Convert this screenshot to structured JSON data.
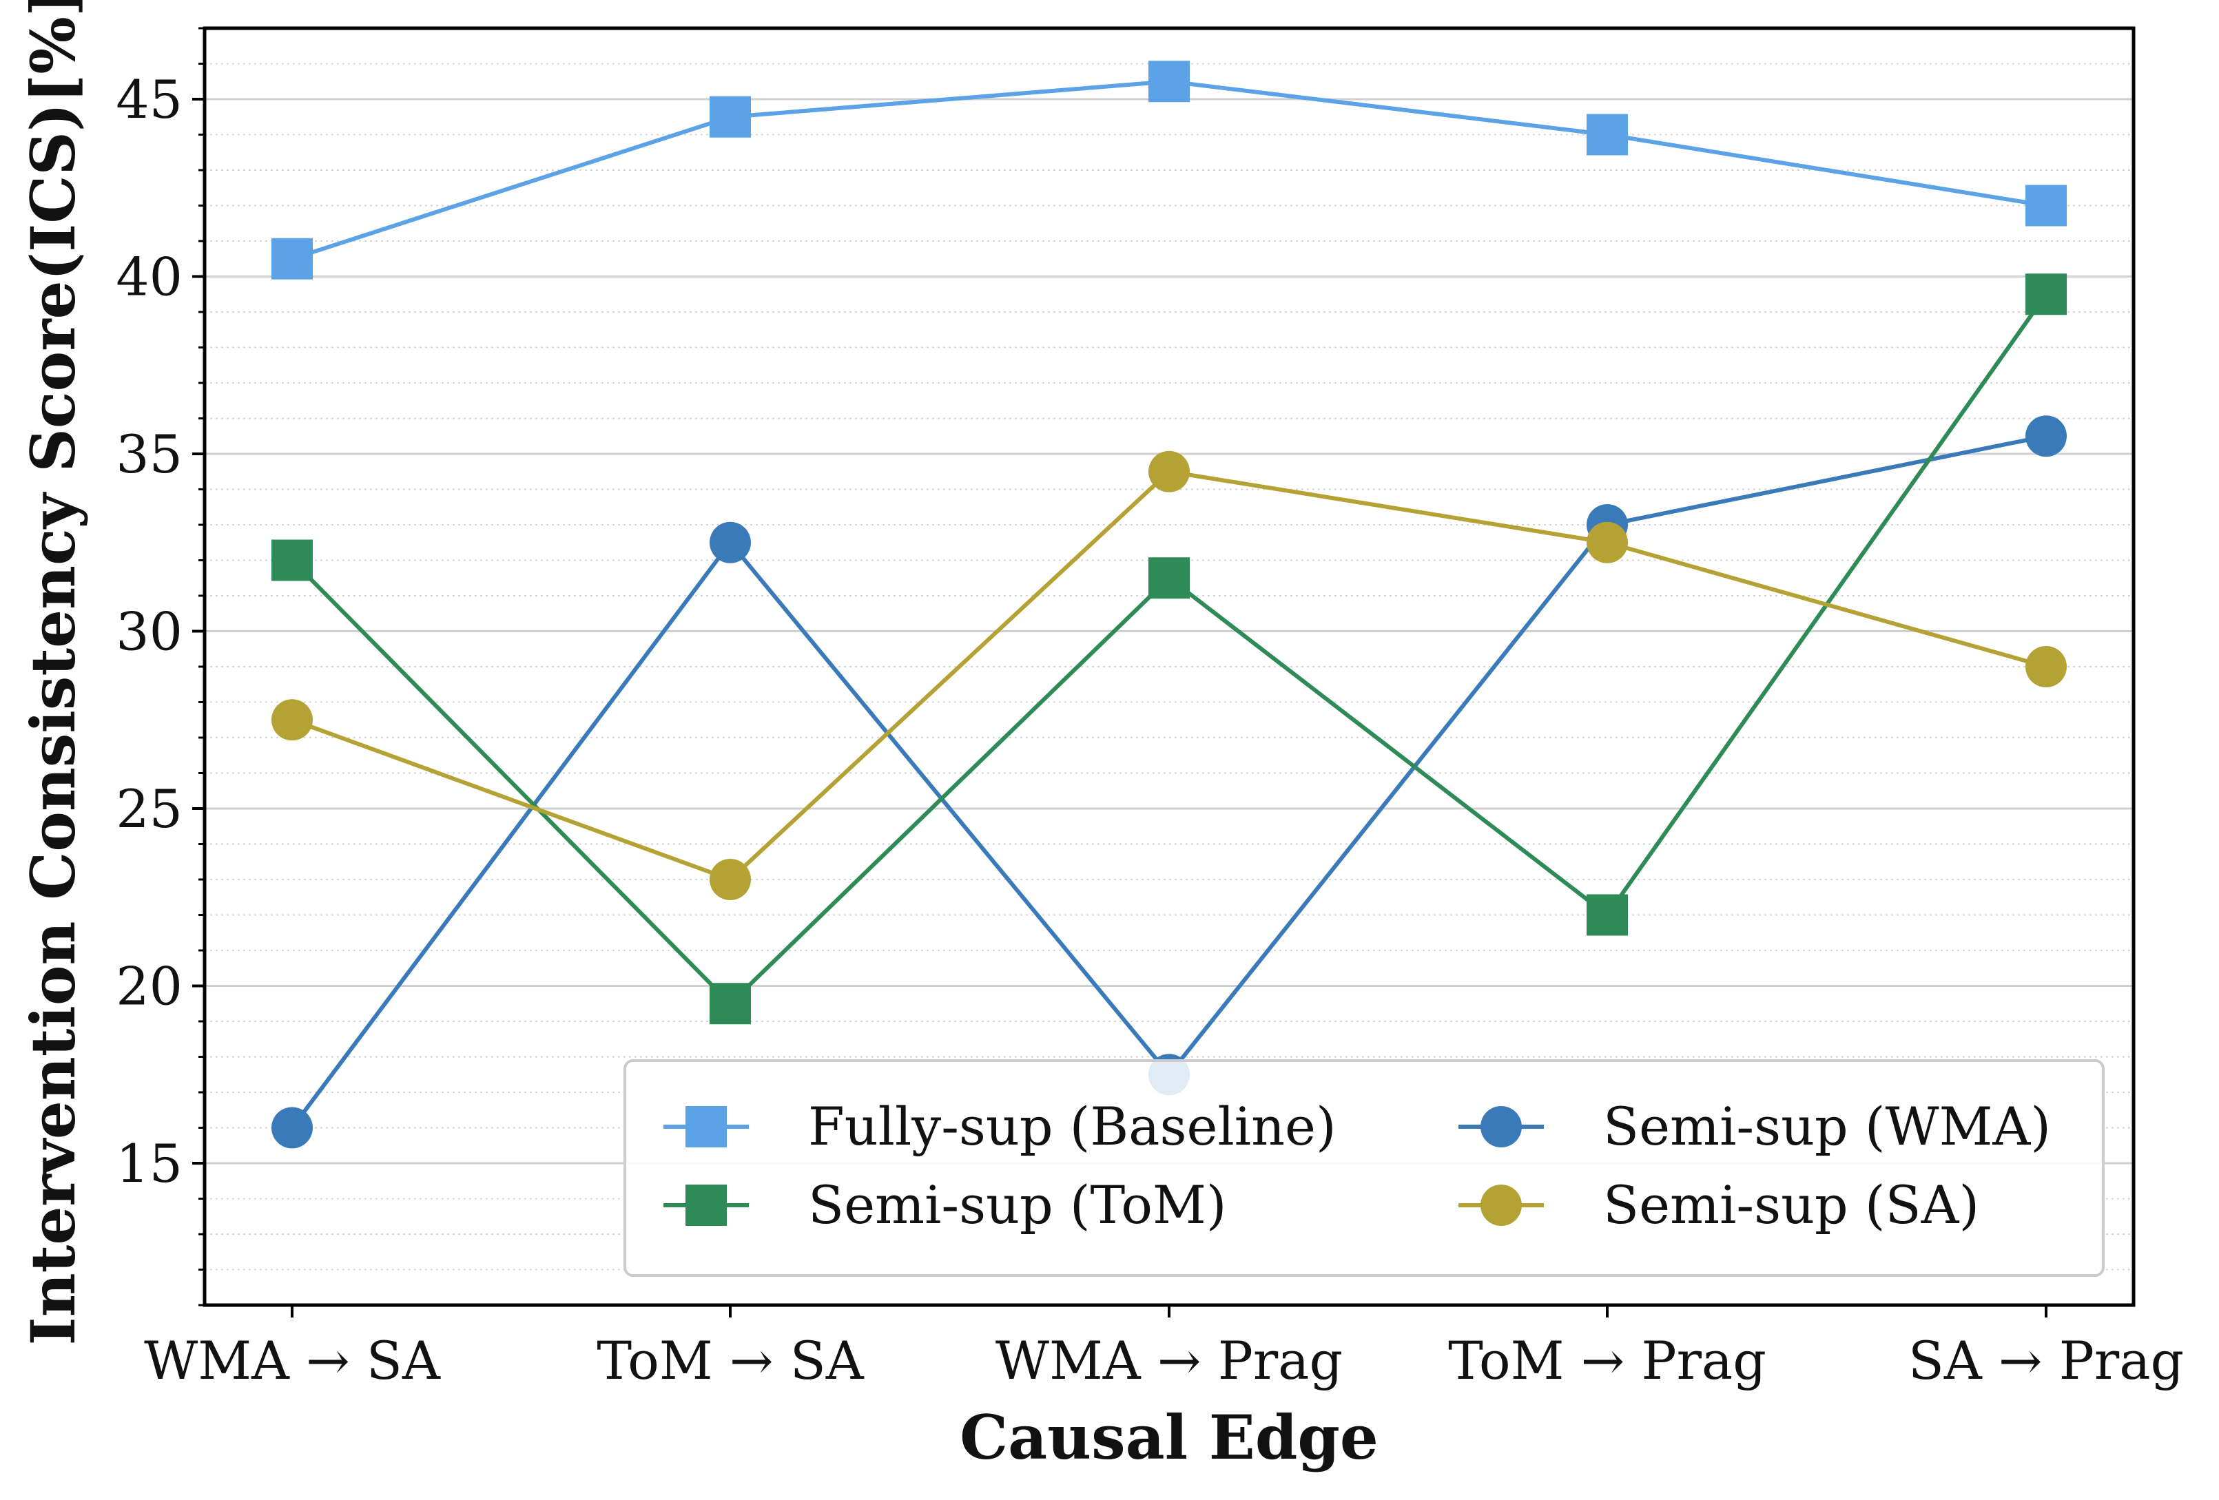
{
  "chart_data": {
    "type": "line",
    "title": "",
    "xlabel": "Causal Edge",
    "ylabel": "Intervention Consistency Score(ICS)[%]",
    "categories": [
      "WMA → SA",
      "ToM → SA",
      "WMA → Prag",
      "ToM → Prag",
      "SA → Prag"
    ],
    "ylim": [
      11,
      47
    ],
    "yticks": [
      15,
      20,
      25,
      30,
      35,
      40,
      45
    ],
    "grid": "major solid, minor dotted (y only)",
    "legend_position": "bottom-right",
    "series": [
      {
        "name": "Fully-sup (Baseline)",
        "marker": "square",
        "color": "#5BA3E6",
        "values": [
          40.5,
          44.5,
          45.5,
          44.0,
          42.0
        ]
      },
      {
        "name": "Semi-sup (WMA)",
        "marker": "circle",
        "color": "#3B7AB8",
        "values": [
          16.0,
          32.5,
          17.5,
          33.0,
          35.5
        ]
      },
      {
        "name": "Semi-sup (ToM)",
        "marker": "square",
        "color": "#2E8B57",
        "values": [
          32.0,
          19.5,
          31.5,
          22.0,
          39.5
        ]
      },
      {
        "name": "Semi-sup (SA)",
        "marker": "circle",
        "color": "#B5A234",
        "values": [
          27.5,
          23.0,
          34.5,
          32.5,
          29.0
        ]
      }
    ],
    "legend_order": [
      0,
      2,
      1,
      3
    ]
  }
}
